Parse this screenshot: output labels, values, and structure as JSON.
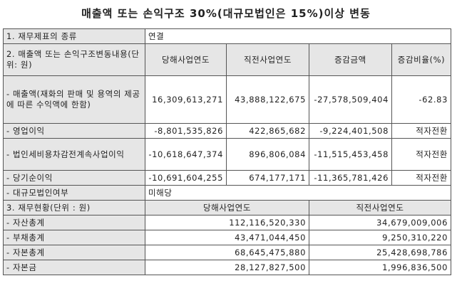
{
  "title": "매출액 또는 손익구조 30%(대규모법인은 15%)이상 변동",
  "row1": {
    "label": "1. 재무제표의 종류",
    "value": "연결"
  },
  "row2": {
    "label": "2. 매출액 또는 손익구조변동내용(단위: 원)",
    "headers": [
      "당해사업연도",
      "직전사업연도",
      "증감금액",
      "증감비율(%)"
    ]
  },
  "items": [
    {
      "label": "- 매출액(재화의 판매 및 용역의 제공에 따른 수익액에 한함)",
      "current": "16,309,613,271",
      "previous": "43,888,122,675",
      "change": "-27,578,509,404",
      "ratio": "-62.83"
    },
    {
      "label": "- 영업이익",
      "current": "-8,801,535,826",
      "previous": "422,865,682",
      "change": "-9,224,401,508",
      "ratio": "적자전환"
    },
    {
      "label": "- 법인세비용차감전계속사업이익",
      "current": "-10,618,647,374",
      "previous": "896,806,084",
      "change": "-11,515,453,458",
      "ratio": "적자전환"
    },
    {
      "label": "- 당기순이익",
      "current": "-10,691,604,255",
      "previous": "674,177,171",
      "change": "-11,365,781,426",
      "ratio": "적자전환"
    }
  ],
  "large_corp": {
    "label": "- 대규모법인여부",
    "value": "미해당"
  },
  "row3": {
    "label": "3. 재무현황(단위 : 원)",
    "headers": [
      "당해사업연도",
      "직전사업연도"
    ]
  },
  "finance": [
    {
      "label": "- 자산총계",
      "current": "112,116,520,330",
      "previous": "34,679,009,006"
    },
    {
      "label": "- 부채총계",
      "current": "43,471,044,450",
      "previous": "9,250,310,220"
    },
    {
      "label": "- 자본총계",
      "current": "68,645,475,880",
      "previous": "25,428,698,786"
    },
    {
      "label": "- 자본금",
      "current": "28,127,827,500",
      "previous": "1,996,836,500"
    }
  ]
}
